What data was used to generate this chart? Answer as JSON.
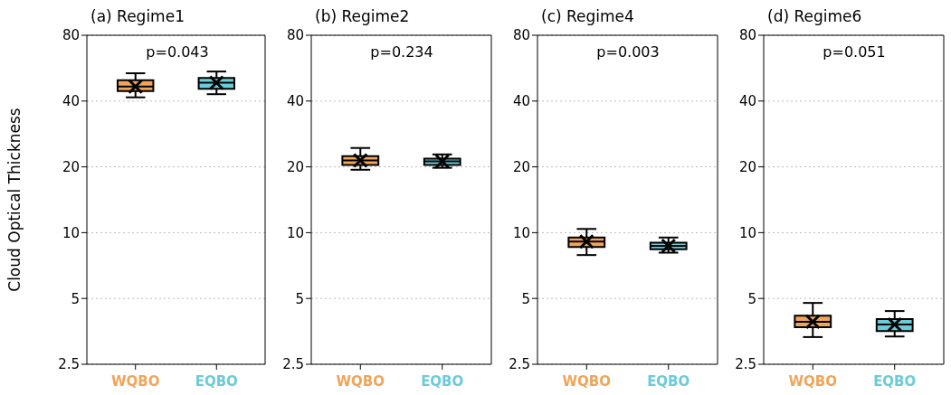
{
  "chart_data": [
    {
      "type": "box",
      "title": "(a) Regime1",
      "ylabel": "Cloud Optical Thickness",
      "categories": [
        "WQBO",
        "EQBO"
      ],
      "colors": [
        "#f0a55a",
        "#6ccbd8"
      ],
      "log": true,
      "ylim": [
        2.5,
        80
      ],
      "yticks": [
        2.5,
        5,
        10,
        20,
        40,
        80
      ],
      "grid": "y",
      "annotations": [
        "p=0.043"
      ],
      "boxes": [
        {
          "low": 41.6,
          "q1": 44.4,
          "median": 46.6,
          "q3": 49.8,
          "high": 53.6,
          "mean": 46.6
        },
        {
          "low": 43,
          "q1": 45.5,
          "median": 48.5,
          "q3": 51,
          "high": 54.6,
          "mean": 48.5
        }
      ]
    },
    {
      "type": "box",
      "title": "(b) Regime2",
      "categories": [
        "WQBO",
        "EQBO"
      ],
      "colors": [
        "#f0a55a",
        "#6ccbd8"
      ],
      "log": true,
      "ylim": [
        2.5,
        80
      ],
      "yticks": [
        2.5,
        5,
        10,
        20,
        40,
        80
      ],
      "grid": "y",
      "annotations": [
        "p=0.234"
      ],
      "boxes": [
        {
          "low": 19.4,
          "q1": 20.4,
          "median": 21.4,
          "q3": 22.4,
          "high": 24.4,
          "mean": 21.4
        },
        {
          "low": 19.8,
          "q1": 20.4,
          "median": 21.2,
          "q3": 21.8,
          "high": 22.8,
          "mean": 21.2
        }
      ]
    },
    {
      "type": "box",
      "title": "(c) Regime4",
      "categories": [
        "WQBO",
        "EQBO"
      ],
      "colors": [
        "#f0a55a",
        "#6ccbd8"
      ],
      "log": true,
      "ylim": [
        2.5,
        80
      ],
      "yticks": [
        2.5,
        5,
        10,
        20,
        40,
        80
      ],
      "grid": "y",
      "annotations": [
        "p=0.003"
      ],
      "boxes": [
        {
          "low": 7.9,
          "q1": 8.6,
          "median": 9.1,
          "q3": 9.5,
          "high": 10.4,
          "mean": 9.1
        },
        {
          "low": 8.1,
          "q1": 8.4,
          "median": 8.7,
          "q3": 9.0,
          "high": 9.5,
          "mean": 8.7
        }
      ]
    },
    {
      "type": "box",
      "title": "(d) Regime6",
      "categories": [
        "WQBO",
        "EQBO"
      ],
      "colors": [
        "#f0a55a",
        "#6ccbd8"
      ],
      "log": true,
      "ylim": [
        2.5,
        80
      ],
      "yticks": [
        2.5,
        5,
        10,
        20,
        40,
        80
      ],
      "grid": "y",
      "annotations": [
        "p=0.051"
      ],
      "boxes": [
        {
          "low": 3.33,
          "q1": 3.69,
          "median": 3.91,
          "q3": 4.17,
          "high": 4.77,
          "mean": 3.91
        },
        {
          "low": 3.35,
          "q1": 3.55,
          "median": 3.8,
          "q3": 4.02,
          "high": 4.38,
          "mean": 3.8
        }
      ]
    }
  ]
}
